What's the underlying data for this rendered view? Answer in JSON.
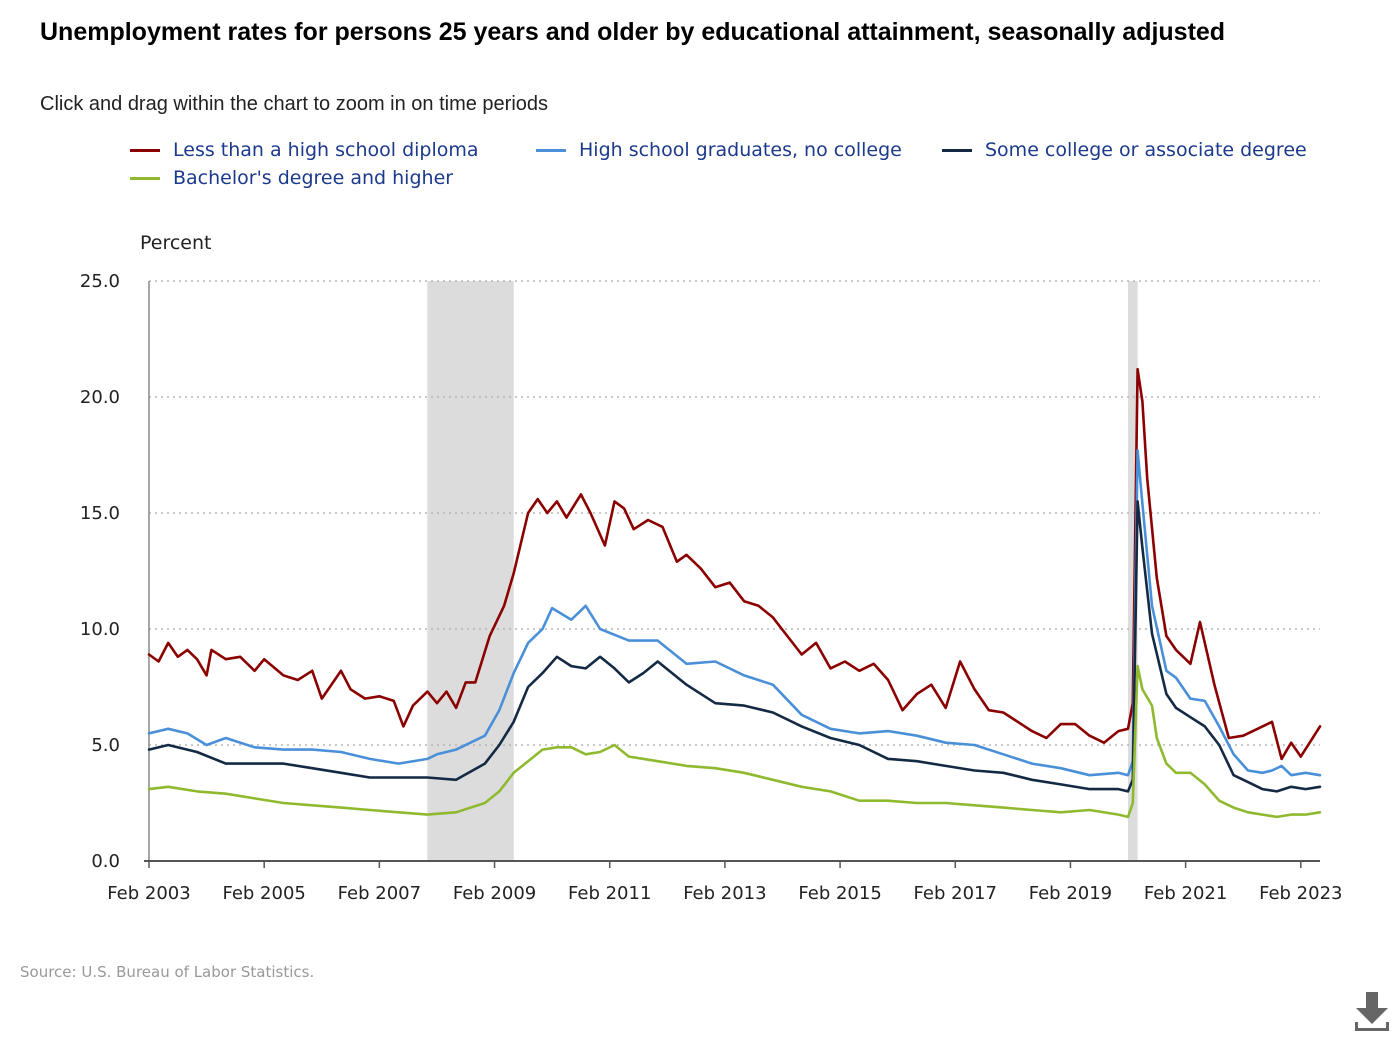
{
  "page": {
    "title": "Unemployment rates for persons 25 years and older by educational attainment, seasonally adjusted",
    "subtitle": "Click and drag within the chart to zoom in on time periods",
    "source": "Source: U.S. Bureau of Labor Statistics.",
    "download_icon": "download-icon"
  },
  "chart_data": {
    "type": "line",
    "title": "Unemployment rates for persons 25 years and older by educational attainment, seasonally adjusted",
    "ylabel": "Percent",
    "xlabel": "",
    "ylim": [
      0,
      25
    ],
    "yticks": [
      "0.0",
      "5.0",
      "10.0",
      "15.0",
      "20.0",
      "25.0"
    ],
    "xlim": [
      "2003-02",
      "2023-06"
    ],
    "xticks": [
      "Feb 2003",
      "Feb 2005",
      "Feb 2007",
      "Feb 2009",
      "Feb 2011",
      "Feb 2013",
      "Feb 2015",
      "Feb 2017",
      "Feb 2019",
      "Feb 2021",
      "Feb 2023"
    ],
    "grid": "horizontal-dotted",
    "legend_position": "top",
    "recessions": [
      {
        "start": "2007-12",
        "end": "2009-06"
      },
      {
        "start": "2020-02",
        "end": "2020-04"
      }
    ],
    "series": [
      {
        "name": "Less than a high school diploma",
        "color": "#8b0000",
        "points": [
          [
            "2003-02",
            8.9
          ],
          [
            "2003-04",
            8.6
          ],
          [
            "2003-06",
            9.4
          ],
          [
            "2003-08",
            8.8
          ],
          [
            "2003-10",
            9.1
          ],
          [
            "2003-12",
            8.7
          ],
          [
            "2004-02",
            8.0
          ],
          [
            "2004-03",
            9.1
          ],
          [
            "2004-06",
            8.7
          ],
          [
            "2004-09",
            8.8
          ],
          [
            "2004-12",
            8.2
          ],
          [
            "2005-02",
            8.7
          ],
          [
            "2005-06",
            8.0
          ],
          [
            "2005-09",
            7.8
          ],
          [
            "2005-12",
            8.2
          ],
          [
            "2006-02",
            7.0
          ],
          [
            "2006-04",
            7.6
          ],
          [
            "2006-06",
            8.2
          ],
          [
            "2006-08",
            7.4
          ],
          [
            "2006-11",
            7.0
          ],
          [
            "2007-02",
            7.1
          ],
          [
            "2007-05",
            6.9
          ],
          [
            "2007-07",
            5.8
          ],
          [
            "2007-09",
            6.7
          ],
          [
            "2007-12",
            7.3
          ],
          [
            "2008-02",
            6.8
          ],
          [
            "2008-04",
            7.3
          ],
          [
            "2008-06",
            6.6
          ],
          [
            "2008-08",
            7.7
          ],
          [
            "2008-10",
            7.7
          ],
          [
            "2009-01",
            9.7
          ],
          [
            "2009-04",
            11.0
          ],
          [
            "2009-06",
            12.4
          ],
          [
            "2009-09",
            15.0
          ],
          [
            "2009-11",
            15.6
          ],
          [
            "2010-01",
            15.0
          ],
          [
            "2010-03",
            15.5
          ],
          [
            "2010-05",
            14.8
          ],
          [
            "2010-08",
            15.8
          ],
          [
            "2010-10",
            15.0
          ],
          [
            "2011-01",
            13.6
          ],
          [
            "2011-03",
            15.5
          ],
          [
            "2011-05",
            15.2
          ],
          [
            "2011-07",
            14.3
          ],
          [
            "2011-10",
            14.7
          ],
          [
            "2012-01",
            14.4
          ],
          [
            "2012-04",
            12.9
          ],
          [
            "2012-06",
            13.2
          ],
          [
            "2012-09",
            12.6
          ],
          [
            "2012-12",
            11.8
          ],
          [
            "2013-03",
            12.0
          ],
          [
            "2013-06",
            11.2
          ],
          [
            "2013-09",
            11.0
          ],
          [
            "2013-12",
            10.5
          ],
          [
            "2014-03",
            9.7
          ],
          [
            "2014-06",
            8.9
          ],
          [
            "2014-09",
            9.4
          ],
          [
            "2014-12",
            8.3
          ],
          [
            "2015-03",
            8.6
          ],
          [
            "2015-06",
            8.2
          ],
          [
            "2015-09",
            8.5
          ],
          [
            "2015-12",
            7.8
          ],
          [
            "2016-03",
            6.5
          ],
          [
            "2016-06",
            7.2
          ],
          [
            "2016-09",
            7.6
          ],
          [
            "2016-12",
            6.6
          ],
          [
            "2017-03",
            8.6
          ],
          [
            "2017-06",
            7.4
          ],
          [
            "2017-09",
            6.5
          ],
          [
            "2017-12",
            6.4
          ],
          [
            "2018-03",
            6.0
          ],
          [
            "2018-06",
            5.6
          ],
          [
            "2018-09",
            5.3
          ],
          [
            "2018-12",
            5.9
          ],
          [
            "2019-03",
            5.9
          ],
          [
            "2019-06",
            5.4
          ],
          [
            "2019-09",
            5.1
          ],
          [
            "2019-12",
            5.6
          ],
          [
            "2020-02",
            5.7
          ],
          [
            "2020-03",
            6.8
          ],
          [
            "2020-04",
            21.2
          ],
          [
            "2020-05",
            19.8
          ],
          [
            "2020-06",
            16.5
          ],
          [
            "2020-08",
            12.2
          ],
          [
            "2020-10",
            9.7
          ],
          [
            "2020-12",
            9.1
          ],
          [
            "2021-03",
            8.5
          ],
          [
            "2021-05",
            10.3
          ],
          [
            "2021-08",
            7.6
          ],
          [
            "2021-11",
            5.3
          ],
          [
            "2022-02",
            5.4
          ],
          [
            "2022-05",
            5.7
          ],
          [
            "2022-08",
            6.0
          ],
          [
            "2022-10",
            4.4
          ],
          [
            "2022-12",
            5.1
          ],
          [
            "2023-02",
            4.5
          ],
          [
            "2023-06",
            5.8
          ]
        ]
      },
      {
        "name": "High school graduates, no college",
        "color": "#4a90d9",
        "points": [
          [
            "2003-02",
            5.5
          ],
          [
            "2003-06",
            5.7
          ],
          [
            "2003-10",
            5.5
          ],
          [
            "2004-02",
            5.0
          ],
          [
            "2004-06",
            5.3
          ],
          [
            "2004-12",
            4.9
          ],
          [
            "2005-06",
            4.8
          ],
          [
            "2005-12",
            4.8
          ],
          [
            "2006-06",
            4.7
          ],
          [
            "2006-12",
            4.4
          ],
          [
            "2007-06",
            4.2
          ],
          [
            "2007-12",
            4.4
          ],
          [
            "2008-02",
            4.6
          ],
          [
            "2008-06",
            4.8
          ],
          [
            "2008-12",
            5.4
          ],
          [
            "2009-03",
            6.5
          ],
          [
            "2009-06",
            8.1
          ],
          [
            "2009-09",
            9.4
          ],
          [
            "2009-12",
            10.0
          ],
          [
            "2010-02",
            10.9
          ],
          [
            "2010-06",
            10.4
          ],
          [
            "2010-09",
            11.0
          ],
          [
            "2010-12",
            10.0
          ],
          [
            "2011-06",
            9.5
          ],
          [
            "2011-12",
            9.5
          ],
          [
            "2012-06",
            8.5
          ],
          [
            "2012-12",
            8.6
          ],
          [
            "2013-06",
            8.0
          ],
          [
            "2013-12",
            7.6
          ],
          [
            "2014-06",
            6.3
          ],
          [
            "2014-12",
            5.7
          ],
          [
            "2015-06",
            5.5
          ],
          [
            "2015-12",
            5.6
          ],
          [
            "2016-06",
            5.4
          ],
          [
            "2016-12",
            5.1
          ],
          [
            "2017-06",
            5.0
          ],
          [
            "2017-12",
            4.6
          ],
          [
            "2018-06",
            4.2
          ],
          [
            "2018-12",
            4.0
          ],
          [
            "2019-06",
            3.7
          ],
          [
            "2019-12",
            3.8
          ],
          [
            "2020-02",
            3.7
          ],
          [
            "2020-03",
            4.3
          ],
          [
            "2020-04",
            17.7
          ],
          [
            "2020-05",
            15.4
          ],
          [
            "2020-07",
            11.0
          ],
          [
            "2020-10",
            8.2
          ],
          [
            "2020-12",
            7.9
          ],
          [
            "2021-03",
            7.0
          ],
          [
            "2021-06",
            6.9
          ],
          [
            "2021-09",
            5.8
          ],
          [
            "2021-12",
            4.6
          ],
          [
            "2022-03",
            3.9
          ],
          [
            "2022-06",
            3.8
          ],
          [
            "2022-08",
            3.9
          ],
          [
            "2022-10",
            4.1
          ],
          [
            "2022-12",
            3.7
          ],
          [
            "2023-03",
            3.8
          ],
          [
            "2023-06",
            3.7
          ]
        ]
      },
      {
        "name": "Some college or associate degree",
        "color": "#142a44",
        "points": [
          [
            "2003-02",
            4.8
          ],
          [
            "2003-06",
            5.0
          ],
          [
            "2003-12",
            4.7
          ],
          [
            "2004-06",
            4.2
          ],
          [
            "2004-12",
            4.2
          ],
          [
            "2005-06",
            4.2
          ],
          [
            "2005-12",
            4.0
          ],
          [
            "2006-06",
            3.8
          ],
          [
            "2006-12",
            3.6
          ],
          [
            "2007-06",
            3.6
          ],
          [
            "2007-12",
            3.6
          ],
          [
            "2008-06",
            3.5
          ],
          [
            "2008-12",
            4.2
          ],
          [
            "2009-03",
            5.0
          ],
          [
            "2009-06",
            6.0
          ],
          [
            "2009-09",
            7.5
          ],
          [
            "2009-12",
            8.1
          ],
          [
            "2010-03",
            8.8
          ],
          [
            "2010-06",
            8.4
          ],
          [
            "2010-09",
            8.3
          ],
          [
            "2010-12",
            8.8
          ],
          [
            "2011-03",
            8.3
          ],
          [
            "2011-06",
            7.7
          ],
          [
            "2011-09",
            8.1
          ],
          [
            "2011-12",
            8.6
          ],
          [
            "2012-06",
            7.6
          ],
          [
            "2012-12",
            6.8
          ],
          [
            "2013-06",
            6.7
          ],
          [
            "2013-12",
            6.4
          ],
          [
            "2014-06",
            5.8
          ],
          [
            "2014-12",
            5.3
          ],
          [
            "2015-06",
            5.0
          ],
          [
            "2015-12",
            4.4
          ],
          [
            "2016-06",
            4.3
          ],
          [
            "2016-12",
            4.1
          ],
          [
            "2017-06",
            3.9
          ],
          [
            "2017-12",
            3.8
          ],
          [
            "2018-06",
            3.5
          ],
          [
            "2018-12",
            3.3
          ],
          [
            "2019-06",
            3.1
          ],
          [
            "2019-12",
            3.1
          ],
          [
            "2020-02",
            3.0
          ],
          [
            "2020-03",
            3.5
          ],
          [
            "2020-04",
            15.5
          ],
          [
            "2020-05",
            13.5
          ],
          [
            "2020-07",
            9.8
          ],
          [
            "2020-10",
            7.2
          ],
          [
            "2020-12",
            6.6
          ],
          [
            "2021-03",
            6.2
          ],
          [
            "2021-06",
            5.8
          ],
          [
            "2021-09",
            5.0
          ],
          [
            "2021-12",
            3.7
          ],
          [
            "2022-03",
            3.4
          ],
          [
            "2022-06",
            3.1
          ],
          [
            "2022-09",
            3.0
          ],
          [
            "2022-12",
            3.2
          ],
          [
            "2023-03",
            3.1
          ],
          [
            "2023-06",
            3.2
          ]
        ]
      },
      {
        "name": "Bachelor's degree and higher",
        "color": "#8fba2f",
        "points": [
          [
            "2003-02",
            3.1
          ],
          [
            "2003-06",
            3.2
          ],
          [
            "2003-12",
            3.0
          ],
          [
            "2004-06",
            2.9
          ],
          [
            "2004-12",
            2.7
          ],
          [
            "2005-06",
            2.5
          ],
          [
            "2005-12",
            2.4
          ],
          [
            "2006-06",
            2.3
          ],
          [
            "2006-12",
            2.2
          ],
          [
            "2007-06",
            2.1
          ],
          [
            "2007-12",
            2.0
          ],
          [
            "2008-06",
            2.1
          ],
          [
            "2008-12",
            2.5
          ],
          [
            "2009-03",
            3.0
          ],
          [
            "2009-06",
            3.8
          ],
          [
            "2009-09",
            4.3
          ],
          [
            "2009-12",
            4.8
          ],
          [
            "2010-03",
            4.9
          ],
          [
            "2010-06",
            4.9
          ],
          [
            "2010-09",
            4.6
          ],
          [
            "2010-12",
            4.7
          ],
          [
            "2011-03",
            5.0
          ],
          [
            "2011-06",
            4.5
          ],
          [
            "2011-12",
            4.3
          ],
          [
            "2012-06",
            4.1
          ],
          [
            "2012-12",
            4.0
          ],
          [
            "2013-06",
            3.8
          ],
          [
            "2013-12",
            3.5
          ],
          [
            "2014-06",
            3.2
          ],
          [
            "2014-12",
            3.0
          ],
          [
            "2015-06",
            2.6
          ],
          [
            "2015-12",
            2.6
          ],
          [
            "2016-06",
            2.5
          ],
          [
            "2016-12",
            2.5
          ],
          [
            "2017-06",
            2.4
          ],
          [
            "2017-12",
            2.3
          ],
          [
            "2018-06",
            2.2
          ],
          [
            "2018-12",
            2.1
          ],
          [
            "2019-06",
            2.2
          ],
          [
            "2019-12",
            2.0
          ],
          [
            "2020-02",
            1.9
          ],
          [
            "2020-03",
            2.5
          ],
          [
            "2020-04",
            8.4
          ],
          [
            "2020-05",
            7.4
          ],
          [
            "2020-07",
            6.7
          ],
          [
            "2020-08",
            5.3
          ],
          [
            "2020-10",
            4.2
          ],
          [
            "2020-12",
            3.8
          ],
          [
            "2021-03",
            3.8
          ],
          [
            "2021-06",
            3.3
          ],
          [
            "2021-09",
            2.6
          ],
          [
            "2021-12",
            2.3
          ],
          [
            "2022-03",
            2.1
          ],
          [
            "2022-06",
            2.0
          ],
          [
            "2022-09",
            1.9
          ],
          [
            "2022-12",
            2.0
          ],
          [
            "2023-03",
            2.0
          ],
          [
            "2023-06",
            2.1
          ]
        ]
      }
    ]
  }
}
